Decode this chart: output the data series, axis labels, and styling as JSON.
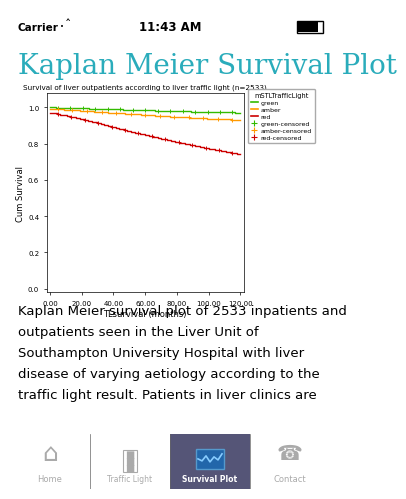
{
  "title": "Kaplan Meier Survival Plot",
  "title_color": "#2AACBB",
  "plot_title": "Survival of liver outpatients according to liver traffic light (n=2533)",
  "xlabel": "TLsurvival (months)",
  "ylabel": "Cum Survival",
  "legend_title": "mSTLTrafficLight",
  "legend_labels": [
    "green",
    "amber",
    "red",
    "green-censored",
    "amber-censored",
    "red-censored"
  ],
  "line_colors": [
    "#33BB00",
    "#FF9900",
    "#CC0000"
  ],
  "background_color": "#FFFFFF",
  "status_bar_bg": "#D0D0D0",
  "nav_bar_bg": "#3A3A3A",
  "body_text_lines": [
    "Kaplan Meier survival plot of 2533 inpatients and",
    "outpatients seen in the Liver Unit of",
    "Southampton University Hospital with liver",
    "disease of varying aetiology according to the",
    "traffic light result. Patients in liver clinics are"
  ],
  "xticks": [
    0.0,
    20.0,
    40.0,
    60.0,
    80.0,
    100.0,
    120.0
  ],
  "yticks": [
    0.0,
    0.2,
    0.4,
    0.6,
    0.8,
    1.0
  ],
  "ylim": [
    -0.02,
    1.08
  ],
  "xlim": [
    -2.0,
    122.0
  ],
  "nav_labels": [
    "Home",
    "Traffic Light",
    "Survival Plot",
    "Contact"
  ],
  "nav_active": 2,
  "status_text_color": "#000000",
  "title_fontsize": 20,
  "body_fontsize": 9.5
}
